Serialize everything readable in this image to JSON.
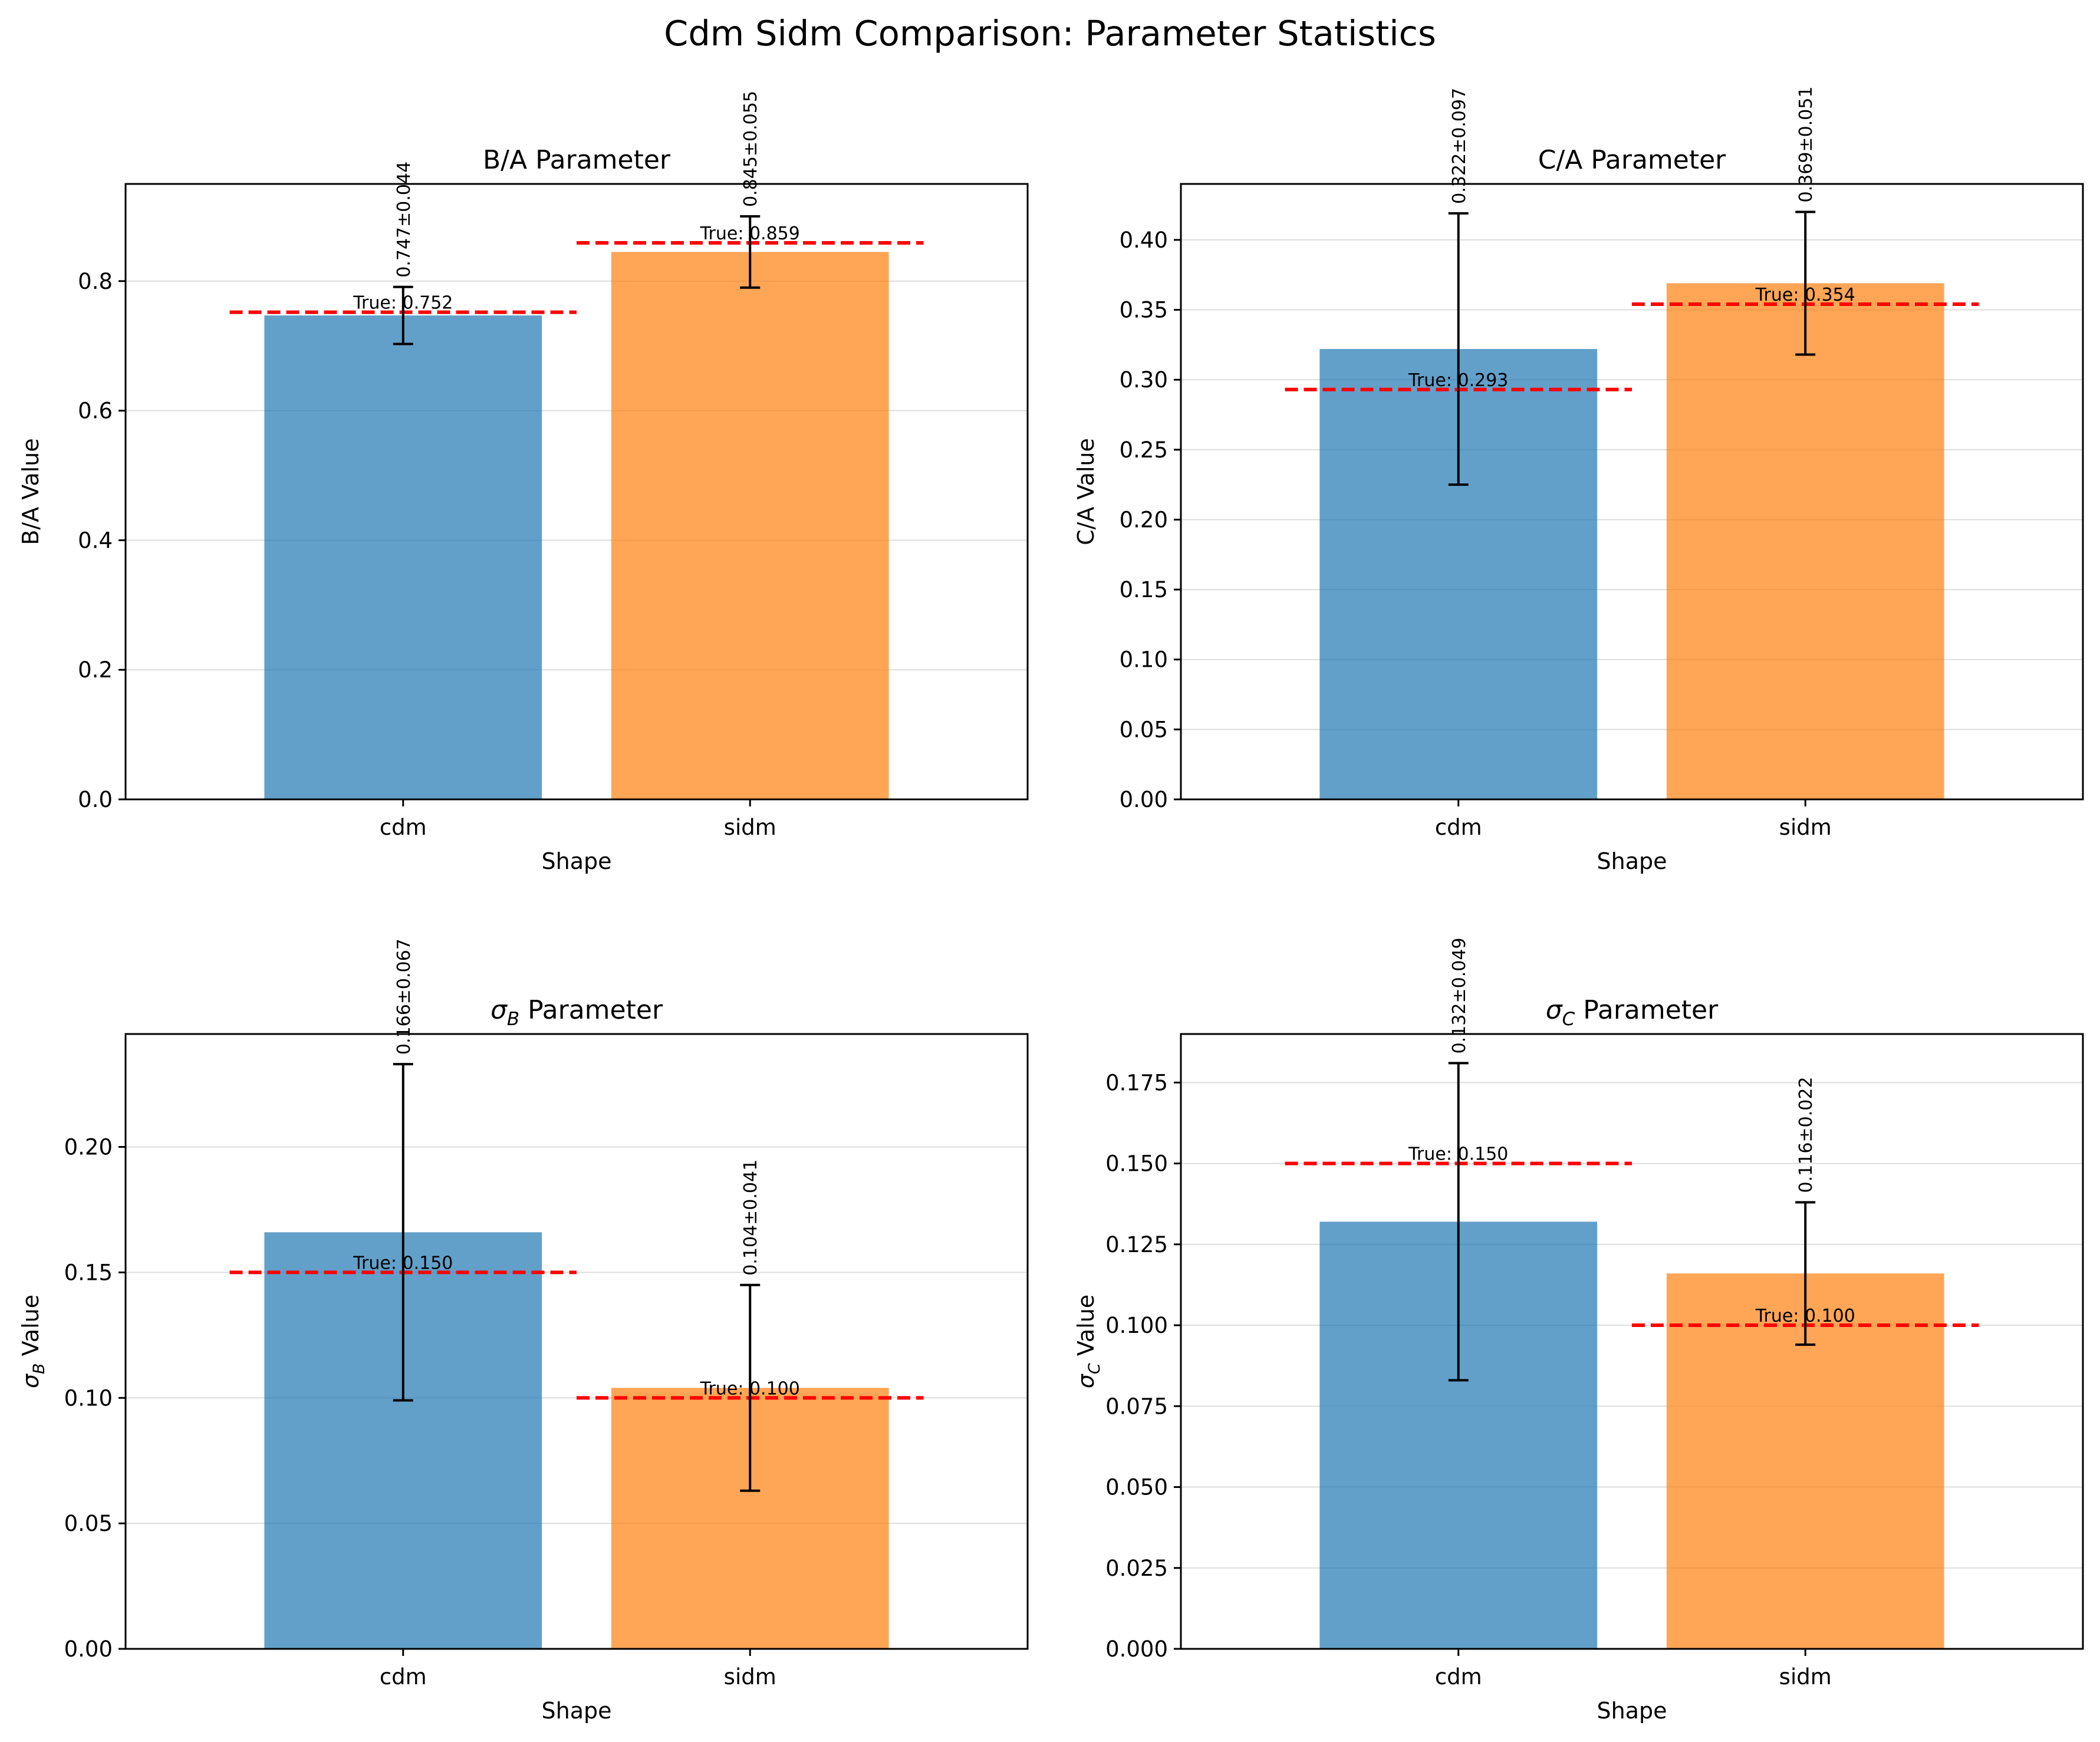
{
  "suptitle": "Cdm Sidm Comparison: Parameter Statistics",
  "colors": {
    "cdm": "#1f77b4",
    "sidm": "#ff7f0e",
    "true_line": "#ff0000",
    "error_bar": "#000000",
    "grid": "#dddddd"
  },
  "chart_data": [
    {
      "type": "bar",
      "title": "B/A Parameter",
      "xlabel": "Shape",
      "ylabel": "B/A Value",
      "categories": [
        "cdm",
        "sidm"
      ],
      "values": [
        0.747,
        0.845
      ],
      "errors": [
        0.044,
        0.055
      ],
      "value_labels": [
        "0.747±0.044",
        "0.845±0.055"
      ],
      "true_values": [
        0.752,
        0.859
      ],
      "true_labels": [
        "True: 0.752",
        "True: 0.859"
      ],
      "ylim": [
        0,
        0.95
      ],
      "yticks": [
        0.0,
        0.2,
        0.4,
        0.6,
        0.8
      ],
      "ytick_labels": [
        "0.0",
        "0.2",
        "0.4",
        "0.6",
        "0.8"
      ],
      "grid": "y"
    },
    {
      "type": "bar",
      "title": "C/A Parameter",
      "xlabel": "Shape",
      "ylabel": "C/A Value",
      "categories": [
        "cdm",
        "sidm"
      ],
      "values": [
        0.322,
        0.369
      ],
      "errors": [
        0.097,
        0.051
      ],
      "value_labels": [
        "0.322±0.097",
        "0.369±0.051"
      ],
      "true_values": [
        0.293,
        0.354
      ],
      "true_labels": [
        "True: 0.293",
        "True: 0.354"
      ],
      "ylim": [
        0,
        0.44
      ],
      "yticks": [
        0.0,
        0.05,
        0.1,
        0.15,
        0.2,
        0.25,
        0.3,
        0.35,
        0.4
      ],
      "ytick_labels": [
        "0.00",
        "0.05",
        "0.10",
        "0.15",
        "0.20",
        "0.25",
        "0.30",
        "0.35",
        "0.40"
      ],
      "grid": "y"
    },
    {
      "type": "bar",
      "title": "σ",
      "title_sub": "B",
      "title_rest": " Parameter",
      "xlabel": "Shape",
      "ylabel": "σ",
      "ylabel_sub": "B",
      "ylabel_rest": " Value",
      "categories": [
        "cdm",
        "sidm"
      ],
      "values": [
        0.166,
        0.104
      ],
      "errors": [
        0.067,
        0.041
      ],
      "value_labels": [
        "0.166±0.067",
        "0.104±0.041"
      ],
      "true_values": [
        0.15,
        0.1
      ],
      "true_labels": [
        "True: 0.150",
        "True: 0.100"
      ],
      "ylim": [
        0,
        0.245
      ],
      "yticks": [
        0.0,
        0.05,
        0.1,
        0.15,
        0.2
      ],
      "ytick_labels": [
        "0.00",
        "0.05",
        "0.10",
        "0.15",
        "0.20"
      ],
      "grid": "y"
    },
    {
      "type": "bar",
      "title": "σ",
      "title_sub": "C",
      "title_rest": " Parameter",
      "xlabel": "Shape",
      "ylabel": "σ",
      "ylabel_sub": "C",
      "ylabel_rest": " Value",
      "categories": [
        "cdm",
        "sidm"
      ],
      "values": [
        0.132,
        0.116
      ],
      "errors": [
        0.049,
        0.022
      ],
      "value_labels": [
        "0.132±0.049",
        "0.116±0.022"
      ],
      "true_values": [
        0.15,
        0.1
      ],
      "true_labels": [
        "True: 0.150",
        "True: 0.100"
      ],
      "ylim": [
        0,
        0.19
      ],
      "yticks": [
        0.0,
        0.025,
        0.05,
        0.075,
        0.1,
        0.125,
        0.15,
        0.175
      ],
      "ytick_labels": [
        "0.000",
        "0.025",
        "0.050",
        "0.075",
        "0.100",
        "0.125",
        "0.150",
        "0.175"
      ],
      "grid": "y"
    }
  ]
}
